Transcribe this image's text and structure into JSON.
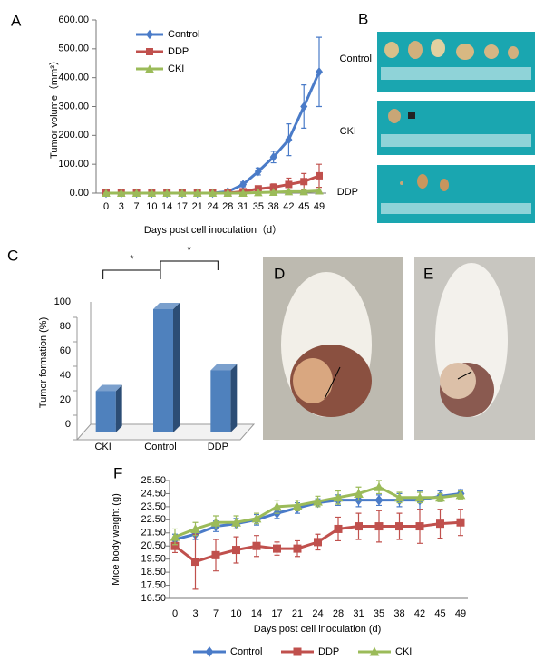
{
  "chart_data": [
    {
      "type": "line",
      "panel_label": "A",
      "ylabel": "Tumor volume（mm³）",
      "xlabel": "Days post cell inoculation（d）",
      "categories": [
        "0",
        "3",
        "7",
        "10",
        "14",
        "17",
        "21",
        "24",
        "28",
        "31",
        "35",
        "38",
        "42",
        "45",
        "49"
      ],
      "ylim": [
        0,
        600
      ],
      "yticks": [
        {
          "value": 0,
          "label": "0.00"
        },
        {
          "value": 100,
          "label": "100.00"
        },
        {
          "value": 200,
          "label": "200.00"
        },
        {
          "value": 300,
          "label": "300.00"
        },
        {
          "value": 400,
          "label": "400.00"
        },
        {
          "value": 500,
          "label": "500.00"
        },
        {
          "value": 600,
          "label": "600.00"
        }
      ],
      "legend": "upper left",
      "series": [
        {
          "name": "Control",
          "color": "#4a7bc8",
          "marker": "diamond",
          "values": [
            0,
            0,
            0,
            0,
            0,
            0,
            0,
            0,
            5,
            30,
            75,
            125,
            185,
            300,
            420
          ],
          "errors": [
            0,
            0,
            0,
            0,
            0,
            0,
            0,
            0,
            3,
            8,
            12,
            20,
            55,
            75,
            120
          ]
        },
        {
          "name": "DDP",
          "color": "#c0504d",
          "marker": "square",
          "values": [
            0,
            0,
            0,
            0,
            0,
            0,
            0,
            0,
            0,
            5,
            15,
            20,
            30,
            40,
            60
          ],
          "errors": [
            0,
            0,
            0,
            0,
            0,
            0,
            0,
            0,
            2,
            4,
            8,
            12,
            22,
            28,
            40
          ]
        },
        {
          "name": "CKI",
          "color": "#9bbb59",
          "marker": "triangle",
          "values": [
            0,
            0,
            0,
            0,
            0,
            0,
            0,
            0,
            0,
            0,
            2,
            3,
            5,
            5,
            8
          ],
          "errors": [
            0,
            0,
            0,
            0,
            0,
            0,
            0,
            0,
            0,
            0,
            2,
            2,
            3,
            4,
            6
          ]
        }
      ]
    },
    {
      "type": "bar3d",
      "panel_label": "C",
      "ylabel": "Tumor formation (%)",
      "categories": [
        "CKI",
        "Control",
        "DDP"
      ],
      "values": [
        33,
        100,
        50
      ],
      "color": "#4f81bd",
      "ylim": [
        0,
        100
      ],
      "yticks": [
        0,
        20,
        40,
        60,
        80,
        100
      ],
      "annotations": [
        "*",
        "*"
      ]
    },
    {
      "type": "line",
      "panel_label": "F",
      "ylabel": "Mice body weight (g)",
      "xlabel": "Days post cell inoculation (d)",
      "categories": [
        "0",
        "3",
        "7",
        "10",
        "14",
        "17",
        "21",
        "24",
        "28",
        "31",
        "35",
        "38",
        "42",
        "45",
        "49"
      ],
      "ylim": [
        16.5,
        25.5
      ],
      "yticks": [
        {
          "value": 16.5,
          "label": "16.50"
        },
        {
          "value": 17.5,
          "label": "17.50"
        },
        {
          "value": 18.5,
          "label": "18.50"
        },
        {
          "value": 19.5,
          "label": "19.50"
        },
        {
          "value": 20.5,
          "label": "20.50"
        },
        {
          "value": 21.5,
          "label": "21.50"
        },
        {
          "value": 22.5,
          "label": "22.50"
        },
        {
          "value": 23.5,
          "label": "23.50"
        },
        {
          "value": 24.5,
          "label": "24.50"
        },
        {
          "value": 25.5,
          "label": "25.50"
        }
      ],
      "legend": "bottom",
      "series": [
        {
          "name": "Control",
          "color": "#4a7bc8",
          "marker": "diamond",
          "values": [
            21,
            21.4,
            22,
            22.2,
            22.5,
            23,
            23.4,
            23.8,
            24,
            24,
            24,
            24,
            24,
            24.3,
            24.5
          ],
          "errors": [
            0.4,
            0.4,
            0.4,
            0.4,
            0.4,
            0.4,
            0.4,
            0.3,
            0.4,
            0.5,
            0.4,
            0.5,
            0.7,
            0.4,
            0.3
          ]
        },
        {
          "name": "DDP",
          "color": "#c0504d",
          "marker": "square",
          "values": [
            20.5,
            19.3,
            19.8,
            20.2,
            20.5,
            20.3,
            20.3,
            20.8,
            21.8,
            22,
            22,
            22,
            22,
            22.2,
            22.3
          ],
          "errors": [
            0.5,
            2.1,
            1.2,
            1,
            0.8,
            0.5,
            0.6,
            0.6,
            0.9,
            1,
            1.2,
            1,
            1.3,
            1.1,
            1
          ]
        },
        {
          "name": "CKI",
          "color": "#9bbb59",
          "marker": "triangle",
          "values": [
            21.2,
            21.8,
            22.3,
            22.3,
            22.6,
            23.5,
            23.6,
            23.9,
            24.2,
            24.5,
            25,
            24.2,
            24.2,
            24.2,
            24.4
          ],
          "errors": [
            0.6,
            0.5,
            0.5,
            0.5,
            0.4,
            0.5,
            0.4,
            0.4,
            0.5,
            0.5,
            0.5,
            0.4,
            0.4,
            0.3,
            0.3
          ]
        }
      ]
    }
  ],
  "photos": {
    "B": {
      "label": "B",
      "rows": [
        "Control",
        "CKI",
        "DDP"
      ]
    },
    "D": {
      "label": "D"
    },
    "E": {
      "label": "E"
    }
  }
}
